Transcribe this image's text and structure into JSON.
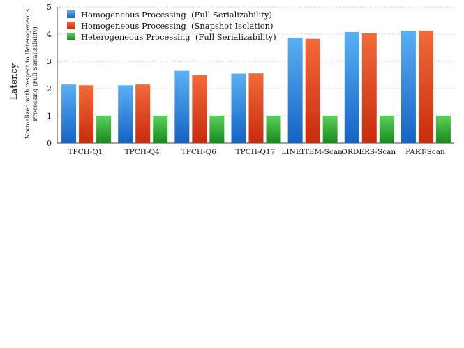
{
  "chart_data": {
    "type": "bar",
    "ylabel_main": "Latency",
    "ylabel_sub_line1": "Normalized with respect to Heterogeneous",
    "ylabel_sub_line2": "Processing (Full Serializability)",
    "xlabel": "",
    "ylim": [
      0,
      5
    ],
    "yticks": [
      "0",
      "1",
      "2",
      "3",
      "4",
      "5"
    ],
    "grid": "horizontal dotted",
    "legend_position": "top-left",
    "categories": [
      "TPCH-Q1",
      "TPCH-Q4",
      "TPCH-Q6",
      "TPCH-Q17",
      "LINEITEM-Scan",
      "ORDERS-Scan",
      "PART-Scan"
    ],
    "series": [
      {
        "name": "Homogeneous Processing  (Full Serializability)",
        "color": "#2f8fe6",
        "values": [
          2.15,
          2.12,
          2.65,
          2.55,
          3.87,
          4.08,
          4.13
        ]
      },
      {
        "name": "Homogeneous Processing  (Snapshot Isolation)",
        "color": "#e8421a",
        "values": [
          2.12,
          2.15,
          2.5,
          2.56,
          3.83,
          4.03,
          4.13
        ]
      },
      {
        "name": "Heterogeneous Processing  (Full Serializability)",
        "color": "#2fae2f",
        "values": [
          1.0,
          1.0,
          1.0,
          1.0,
          1.0,
          1.0,
          1.0
        ]
      }
    ]
  }
}
